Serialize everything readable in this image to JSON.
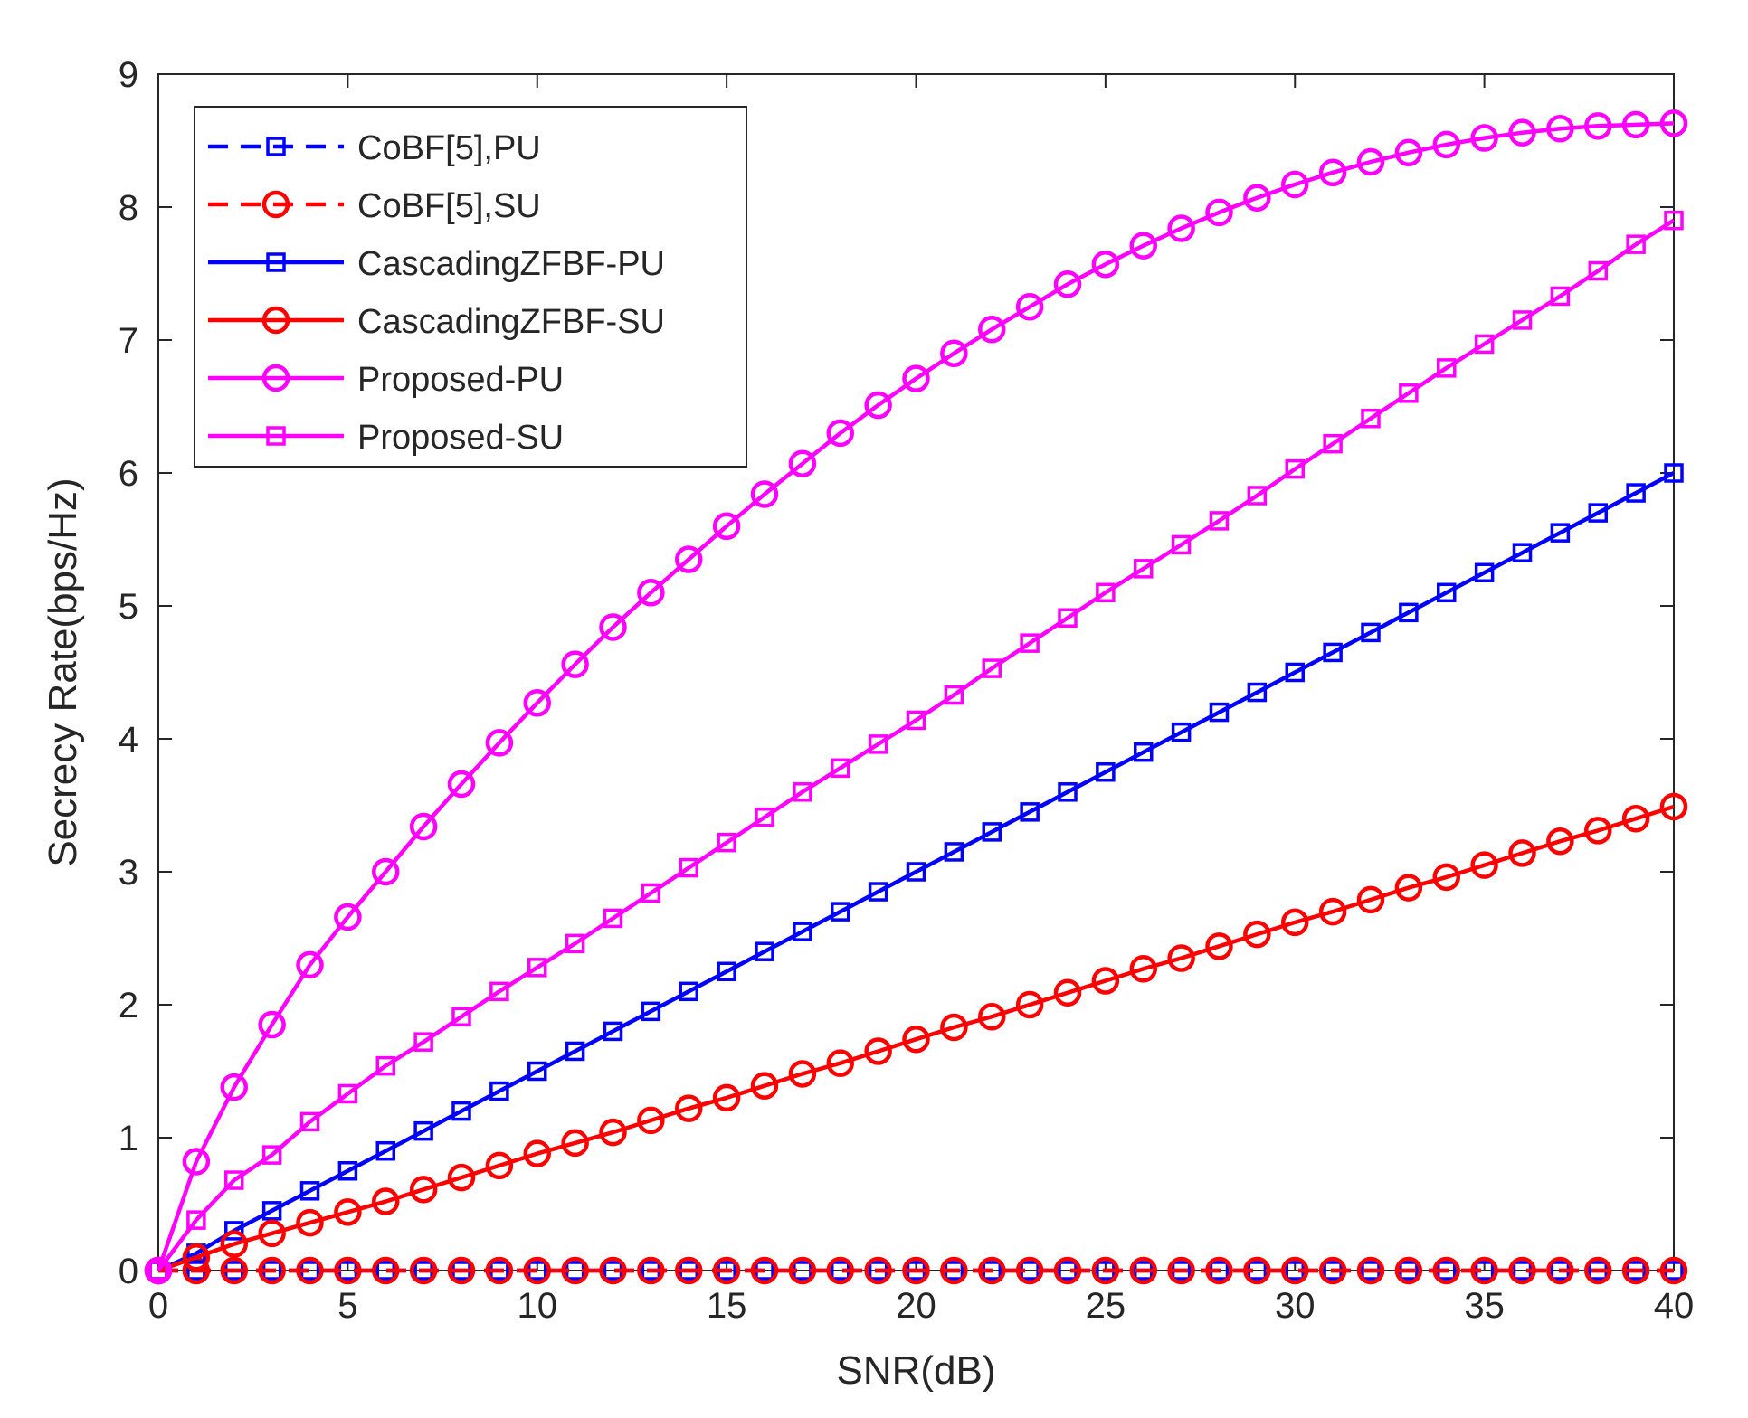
{
  "chart_data": {
    "type": "line",
    "title": "",
    "xlabel": "SNR(dB)",
    "ylabel": "Secrecy Rate(bps/Hz)",
    "xlim": [
      0,
      40
    ],
    "ylim": [
      0,
      9
    ],
    "xticks": [
      0,
      5,
      10,
      15,
      20,
      25,
      30,
      35,
      40
    ],
    "yticks": [
      0,
      1,
      2,
      3,
      4,
      5,
      6,
      7,
      8,
      9
    ],
    "grid": false,
    "legend_position": "top-left",
    "x": [
      0,
      1,
      2,
      3,
      4,
      5,
      6,
      7,
      8,
      9,
      10,
      11,
      12,
      13,
      14,
      15,
      16,
      17,
      18,
      19,
      20,
      21,
      22,
      23,
      24,
      25,
      26,
      27,
      28,
      29,
      30,
      31,
      32,
      33,
      34,
      35,
      36,
      37,
      38,
      39,
      40
    ],
    "series": [
      {
        "name": "CoBF[5],PU",
        "color": "#0000ff",
        "line_style": "dashed",
        "marker": "square",
        "values": [
          0,
          0,
          0,
          0,
          0,
          0,
          0,
          0,
          0,
          0,
          0,
          0,
          0,
          0,
          0,
          0,
          0,
          0,
          0,
          0,
          0,
          0,
          0,
          0,
          0,
          0,
          0,
          0,
          0,
          0,
          0,
          0,
          0,
          0,
          0,
          0,
          0,
          0,
          0,
          0,
          0
        ]
      },
      {
        "name": "CoBF[5],SU",
        "color": "#ff0000",
        "line_style": "dashed",
        "marker": "circle",
        "values": [
          0,
          0,
          0,
          0,
          0,
          0,
          0,
          0,
          0,
          0,
          0,
          0,
          0,
          0,
          0,
          0,
          0,
          0,
          0,
          0,
          0,
          0,
          0,
          0,
          0,
          0,
          0,
          0,
          0,
          0,
          0,
          0,
          0,
          0,
          0,
          0,
          0,
          0,
          0,
          0,
          0
        ]
      },
      {
        "name": "CascadingZFBF-PU",
        "color": "#0000ff",
        "line_style": "solid",
        "marker": "square",
        "values": [
          0,
          0.13,
          0.3,
          0.45,
          0.6,
          0.75,
          0.9,
          1.05,
          1.2,
          1.35,
          1.5,
          1.65,
          1.8,
          1.95,
          2.1,
          2.25,
          2.4,
          2.55,
          2.7,
          2.85,
          3.0,
          3.15,
          3.3,
          3.45,
          3.6,
          3.75,
          3.9,
          4.05,
          4.2,
          4.35,
          4.5,
          4.65,
          4.8,
          4.95,
          5.1,
          5.25,
          5.4,
          5.55,
          5.7,
          5.85,
          6.0
        ]
      },
      {
        "name": "CascadingZFBF-SU",
        "color": "#ff0000",
        "line_style": "solid",
        "marker": "circle",
        "values": [
          0,
          0.1,
          0.2,
          0.28,
          0.36,
          0.44,
          0.52,
          0.61,
          0.7,
          0.79,
          0.88,
          0.96,
          1.04,
          1.13,
          1.22,
          1.3,
          1.39,
          1.48,
          1.56,
          1.65,
          1.74,
          1.83,
          1.91,
          2.0,
          2.09,
          2.18,
          2.27,
          2.35,
          2.44,
          2.53,
          2.62,
          2.7,
          2.79,
          2.88,
          2.96,
          3.05,
          3.14,
          3.23,
          3.31,
          3.4,
          3.49
        ]
      },
      {
        "name": "Proposed-PU",
        "color": "#ff00ff",
        "line_style": "solid",
        "marker": "circle",
        "values": [
          0,
          0.82,
          1.38,
          1.85,
          2.3,
          2.66,
          3.0,
          3.34,
          3.66,
          3.97,
          4.27,
          4.56,
          4.84,
          5.1,
          5.35,
          5.6,
          5.84,
          6.07,
          6.3,
          6.51,
          6.71,
          6.9,
          7.08,
          7.25,
          7.42,
          7.57,
          7.71,
          7.84,
          7.96,
          8.07,
          8.17,
          8.26,
          8.34,
          8.41,
          8.47,
          8.52,
          8.56,
          8.59,
          8.61,
          8.62,
          8.63
        ]
      },
      {
        "name": "Proposed-SU",
        "color": "#ff00ff",
        "line_style": "solid",
        "marker": "square",
        "values": [
          0,
          0.38,
          0.68,
          0.87,
          1.12,
          1.33,
          1.54,
          1.72,
          1.91,
          2.1,
          2.28,
          2.46,
          2.65,
          2.84,
          3.03,
          3.22,
          3.41,
          3.6,
          3.78,
          3.96,
          4.14,
          4.33,
          4.53,
          4.72,
          4.91,
          5.1,
          5.28,
          5.46,
          5.64,
          5.83,
          6.03,
          6.22,
          6.41,
          6.6,
          6.79,
          6.97,
          7.15,
          7.33,
          7.52,
          7.72,
          7.9
        ]
      }
    ]
  }
}
